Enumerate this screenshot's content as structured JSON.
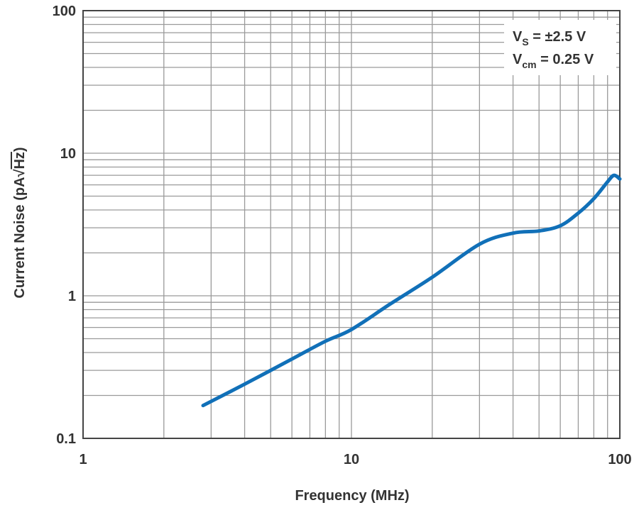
{
  "chart_data": {
    "type": "line",
    "xlabel": "Frequency (MHz)",
    "ylabel": "Current Noise (pA/√Hz)",
    "ylabel_parts": {
      "main": "Current Noise (pA",
      "radical": "√",
      "radicand": "Hz",
      "close": ")"
    },
    "x_scale": "log",
    "y_scale": "log",
    "xlim": [
      1,
      100
    ],
    "ylim": [
      0.1,
      100
    ],
    "x_ticks": [
      "1",
      "10",
      "100"
    ],
    "y_ticks": [
      "0.1",
      "1",
      "10",
      "100"
    ],
    "grid": true,
    "legend_position": "top-right",
    "annotations": [
      {
        "symbol": "V",
        "subscript": "S",
        "text": " = ±2.5 V"
      },
      {
        "symbol": "V",
        "subscript": "cm",
        "text": " = 0.25 V"
      }
    ],
    "colors": {
      "series": "#1170b8",
      "grid": "#9a9a9a",
      "frame": "#444444"
    },
    "series": [
      {
        "x": [
          2.8,
          4,
          6,
          8,
          10,
          14,
          20,
          30,
          40,
          50,
          60,
          70,
          80,
          90,
          95,
          100
        ],
        "y": [
          0.17,
          0.24,
          0.36,
          0.48,
          0.58,
          0.88,
          1.35,
          2.3,
          2.75,
          2.85,
          3.1,
          3.8,
          4.8,
          6.3,
          7.0,
          6.6
        ]
      }
    ]
  }
}
